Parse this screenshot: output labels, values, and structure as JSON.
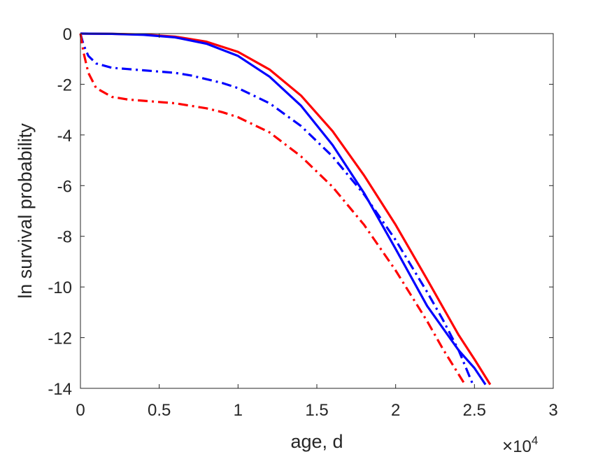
{
  "chart_data": {
    "type": "line",
    "title": "",
    "xlabel": "age, d",
    "ylabel": "ln survival probability",
    "x_exponent_label": {
      "base": "10",
      "power": "4",
      "prefix": "×"
    },
    "xlim": [
      0,
      30000
    ],
    "ylim": [
      -14,
      0
    ],
    "xticks": [
      0,
      5000,
      10000,
      15000,
      20000,
      25000,
      30000
    ],
    "xtick_labels": [
      "0",
      "0.5",
      "1",
      "1.5",
      "2",
      "2.5",
      "3"
    ],
    "yticks": [
      0,
      -2,
      -4,
      -6,
      -8,
      -10,
      -12,
      -14
    ],
    "ytick_labels": [
      "0",
      "-2",
      "-4",
      "-6",
      "-8",
      "-10",
      "-12",
      "-14"
    ],
    "grid": false,
    "box": true,
    "series": [
      {
        "color": "#ff0000",
        "style": "solid",
        "points": [
          [
            0,
            0
          ],
          [
            2000,
            -0.01
          ],
          [
            4000,
            -0.04
          ],
          [
            6000,
            -0.12
          ],
          [
            8000,
            -0.32
          ],
          [
            10000,
            -0.72
          ],
          [
            12000,
            -1.42
          ],
          [
            14000,
            -2.45
          ],
          [
            16000,
            -3.85
          ],
          [
            18000,
            -5.6
          ],
          [
            20000,
            -7.55
          ],
          [
            22000,
            -9.7
          ],
          [
            24000,
            -11.9
          ],
          [
            25000,
            -12.85
          ],
          [
            26000,
            -13.85
          ]
        ]
      },
      {
        "color": "#0000ff",
        "style": "solid",
        "points": [
          [
            0,
            0
          ],
          [
            2000,
            -0.01
          ],
          [
            4000,
            -0.05
          ],
          [
            6000,
            -0.15
          ],
          [
            8000,
            -0.4
          ],
          [
            10000,
            -0.88
          ],
          [
            12000,
            -1.7
          ],
          [
            14000,
            -2.85
          ],
          [
            16000,
            -4.4
          ],
          [
            18000,
            -6.3
          ],
          [
            20000,
            -8.5
          ],
          [
            22000,
            -10.75
          ],
          [
            24000,
            -12.5
          ],
          [
            25000,
            -13.2
          ],
          [
            25700,
            -13.85
          ]
        ]
      },
      {
        "color": "#0000ff",
        "style": "dashdot",
        "points": [
          [
            0,
            0
          ],
          [
            200,
            -0.45
          ],
          [
            500,
            -0.88
          ],
          [
            1000,
            -1.18
          ],
          [
            2000,
            -1.35
          ],
          [
            3000,
            -1.4
          ],
          [
            4000,
            -1.45
          ],
          [
            5000,
            -1.5
          ],
          [
            6000,
            -1.55
          ],
          [
            7000,
            -1.65
          ],
          [
            8000,
            -1.8
          ],
          [
            9000,
            -1.95
          ],
          [
            10000,
            -2.15
          ],
          [
            12000,
            -2.75
          ],
          [
            14000,
            -3.65
          ],
          [
            16000,
            -4.85
          ],
          [
            18000,
            -6.35
          ],
          [
            20000,
            -8.15
          ],
          [
            22000,
            -10.2
          ],
          [
            23000,
            -11.3
          ],
          [
            24000,
            -12.5
          ],
          [
            24900,
            -13.85
          ]
        ]
      },
      {
        "color": "#ff0000",
        "style": "dashdot",
        "points": [
          [
            0,
            0
          ],
          [
            200,
            -0.75
          ],
          [
            500,
            -1.55
          ],
          [
            1000,
            -2.15
          ],
          [
            2000,
            -2.5
          ],
          [
            3000,
            -2.6
          ],
          [
            4000,
            -2.65
          ],
          [
            5000,
            -2.7
          ],
          [
            6000,
            -2.75
          ],
          [
            7000,
            -2.85
          ],
          [
            8000,
            -2.95
          ],
          [
            9000,
            -3.1
          ],
          [
            10000,
            -3.3
          ],
          [
            12000,
            -3.9
          ],
          [
            14000,
            -4.85
          ],
          [
            16000,
            -6.05
          ],
          [
            18000,
            -7.55
          ],
          [
            20000,
            -9.35
          ],
          [
            22000,
            -11.35
          ],
          [
            23000,
            -12.45
          ],
          [
            24000,
            -13.45
          ],
          [
            24400,
            -13.85
          ]
        ]
      }
    ]
  }
}
